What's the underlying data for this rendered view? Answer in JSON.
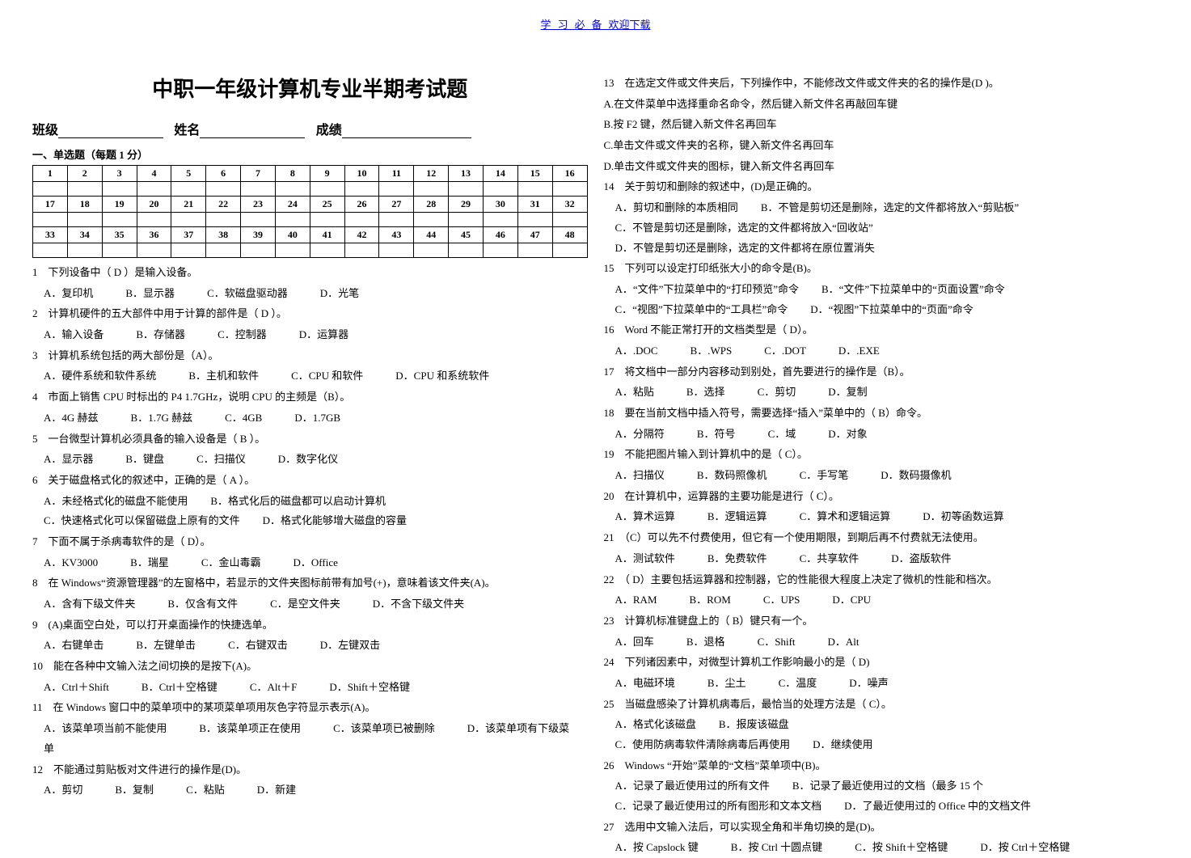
{
  "header": {
    "left": "学习必备",
    "right": "欢迎下载"
  },
  "title": "中职一年级计算机专业半期考试题",
  "info": {
    "class_label": "班级",
    "name_label": "姓名",
    "score_label": "成绩"
  },
  "section1_head": "一、单选题（每题 1 分）",
  "grid": {
    "r1": [
      "1",
      "2",
      "3",
      "4",
      "5",
      "6",
      "7",
      "8",
      "9",
      "10",
      "11",
      "12",
      "13",
      "14",
      "15",
      "16"
    ],
    "r2": [
      "17",
      "18",
      "19",
      "20",
      "21",
      "22",
      "23",
      "24",
      "25",
      "26",
      "27",
      "28",
      "29",
      "30",
      "31",
      "32"
    ],
    "r3": [
      "33",
      "34",
      "35",
      "36",
      "37",
      "38",
      "39",
      "40",
      "41",
      "42",
      "43",
      "44",
      "45",
      "46",
      "47",
      "48"
    ]
  },
  "left_questions": [
    {
      "n": "1",
      "stem": "下列设备中（ D ）是输入设备。",
      "opts": [
        "A．复印机",
        "B．显示器",
        "C．软磁盘驱动器",
        "D．光笔"
      ]
    },
    {
      "n": "2",
      "stem": "计算机硬件的五大部件中用于计算的部件是（ D ）。",
      "opts": [
        "A．输入设备",
        "B．存储器",
        "C．控制器",
        "D．运算器"
      ]
    },
    {
      "n": "3",
      "stem": "计算机系统包括的两大部份是（A）。",
      "opts": [
        "A．硬件系统和软件系统",
        "B．主机和软件",
        "C．CPU 和软件",
        "D．CPU 和系统软件"
      ]
    },
    {
      "n": "4",
      "stem": "市面上销售 CPU 时标出的 P4 1.7GHz，说明 CPU 的主频是（B）。",
      "opts": [
        "A．4G 赫兹",
        "B．1.7G 赫兹",
        "C．4GB",
        "D．1.7GB"
      ]
    },
    {
      "n": "5",
      "stem": "一台微型计算机必须具备的输入设备是（ B ）。",
      "opts": [
        "A．显示器",
        "B．键盘",
        "C．扫描仪",
        "D．数字化仪"
      ]
    },
    {
      "n": "6",
      "stem": "关于磁盘格式化的叙述中，正确的是（ A ）。",
      "opts": [
        "A．未经格式化的磁盘不能使用",
        "B．格式化后的磁盘都可以启动计算机",
        "C．快速格式化可以保留磁盘上原有的文件",
        "D．格式化能够增大磁盘的容量"
      ]
    },
    {
      "n": "7",
      "stem": "下面不属于杀病毒软件的是（ D）。",
      "opts": [
        "A．KV3000",
        "B．瑞星",
        "C．金山毒霸",
        "D．Office"
      ]
    },
    {
      "n": "8",
      "stem": "在 Windows“资源管理器”的左窗格中，若显示的文件夹图标前带有加号(+)，意味着该文件夹(A)。",
      "opts": [
        "A．含有下级文件夹",
        "B．仅含有文件",
        "C．是空文件夹",
        "D．不含下级文件夹"
      ]
    },
    {
      "n": "9",
      "stem": "(A)桌面空白处，可以打开桌面操作的快捷选单。",
      "opts": [
        "A．右键单击",
        "B．左键单击",
        "C．右键双击",
        "D．左键双击"
      ]
    },
    {
      "n": "10",
      "stem": "能在各种中文输入法之间切换的是按下(A)。",
      "opts": [
        "A．Ctrl＋Shift",
        "B．Ctrl＋空格键",
        "C．Alt＋F",
        "D．Shift＋空格键"
      ]
    },
    {
      "n": "11",
      "stem": "在 Windows 窗口中的菜单项中的某项菜单项用灰色字符显示表示(A)。",
      "opts": [
        "A．该菜单项当前不能使用",
        "B．该菜单项正在使用",
        "C．该菜单项已被删除",
        "D．该菜单项有下级菜单"
      ]
    },
    {
      "n": "12",
      "stem": "不能通过剪贴板对文件进行的操作是(D)。",
      "opts": [
        "A．剪切",
        "B．复制",
        "C．粘贴",
        "D．新建"
      ]
    }
  ],
  "right_questions": [
    {
      "n": "13",
      "stem": "在选定文件或文件夹后，下列操作中，不能修改文件或文件夹的名的操作是(D )。",
      "opts": [
        "A.在文件菜单中选择重命名命令，然后键入新文件名再敲回车键",
        "B.按 F2 键，然后键入新文件名再回车",
        "C.单击文件或文件夹的名称，键入新文件名再回车",
        "D.单击文件或文件夹的图标，键入新文件名再回车"
      ]
    },
    {
      "n": "14",
      "stem": "关于剪切和删除的叙述中，(D)是正确的。",
      "opts": [
        "A．剪切和删除的本质相同",
        "B．不管是剪切还是删除，选定的文件都将放入“剪贴板”",
        "C．不管是剪切还是删除，选定的文件都将放入“回收站”",
        "D．不管是剪切还是删除，选定的文件都将在原位置消失"
      ]
    },
    {
      "n": "15",
      "stem": "下列可以设定打印纸张大小的命令是(B)。",
      "opts": [
        "A．“文件”下拉菜单中的“打印预览”命令",
        "B．“文件”下拉菜单中的“页面设置”命令",
        "C．“视图”下拉菜单中的“工具栏”命令",
        "D．“视图”下拉菜单中的“页面”命令"
      ]
    },
    {
      "n": "16",
      "stem": "Word 不能正常打开的文档类型是（ D）。",
      "opts": [
        "A．.DOC",
        "B．.WPS",
        "C．.DOT",
        "D．.EXE"
      ]
    },
    {
      "n": "17",
      "stem": "将文档中一部分内容移动到别处，首先要进行的操作是（B）。",
      "opts": [
        "A．粘贴",
        "B．选择",
        "C．剪切",
        "D．复制"
      ]
    },
    {
      "n": "18",
      "stem": "要在当前文档中插入符号，需要选择“插入”菜单中的（ B）命令。",
      "opts": [
        "A．分隔符",
        "B．符号",
        "C．域",
        "D．对象"
      ]
    },
    {
      "n": "19",
      "stem": "不能把图片输入到计算机中的是（ C）。",
      "opts": [
        "A．扫描仪",
        "B．数码照像机",
        "C．手写笔",
        "D．数码摄像机"
      ]
    },
    {
      "n": "20",
      "stem": "在计算机中，运算器的主要功能是进行（ C）。",
      "opts": [
        "A．算术运算",
        "B．逻辑运算",
        "C．算术和逻辑运算",
        "D．初等函数运算"
      ]
    },
    {
      "n": "21",
      "stem": "（C）可以先不付费使用，但它有一个使用期限，到期后再不付费就无法使用。",
      "opts": [
        "A．测试软件",
        "B．免费软件",
        "C．共享软件",
        "D．盗版软件"
      ]
    },
    {
      "n": "22",
      "stem": "（ D）主要包括运算器和控制器，它的性能很大程度上决定了微机的性能和档次。",
      "opts": [
        "A．RAM",
        "B．ROM",
        "C．UPS",
        "D．CPU"
      ]
    },
    {
      "n": "23",
      "stem": "计算机标准键盘上的（ B）键只有一个。",
      "opts": [
        "A．回车",
        "B．退格",
        "C．Shift",
        "D．Alt"
      ]
    },
    {
      "n": "24",
      "stem": "下列诸因素中，对微型计算机工作影响最小的是（ D)",
      "opts": [
        "A．电磁环境",
        "B．尘土",
        "C．温度",
        "D．噪声"
      ]
    },
    {
      "n": "25",
      "stem": "当磁盘感染了计算机病毒后，最恰当的处理方法是（ C）。",
      "opts": [
        "A．格式化该磁盘",
        "B．报废该磁盘",
        "C．使用防病毒软件清除病毒后再使用",
        "D．继续使用"
      ]
    },
    {
      "n": "26",
      "stem": "Windows “开始”菜单的“文档”菜单项中(B)。",
      "opts": [
        "A．记录了最近使用过的所有文件",
        "B．记录了最近使用过的文档（最多 15 个",
        "C．记录了最近使用过的所有图形和文本文档",
        "D．了最近使用过的 Office 中的文档文件"
      ]
    },
    {
      "n": "27",
      "stem": "选用中文输入法后，可以实现全角和半角切换的是(D)。",
      "opts": [
        "A．按 Capslock 键",
        "B．按 Ctrl 十圆点键",
        "C．按 Shift＋空格键",
        "D．按 Ctrl＋空格键"
      ]
    }
  ]
}
